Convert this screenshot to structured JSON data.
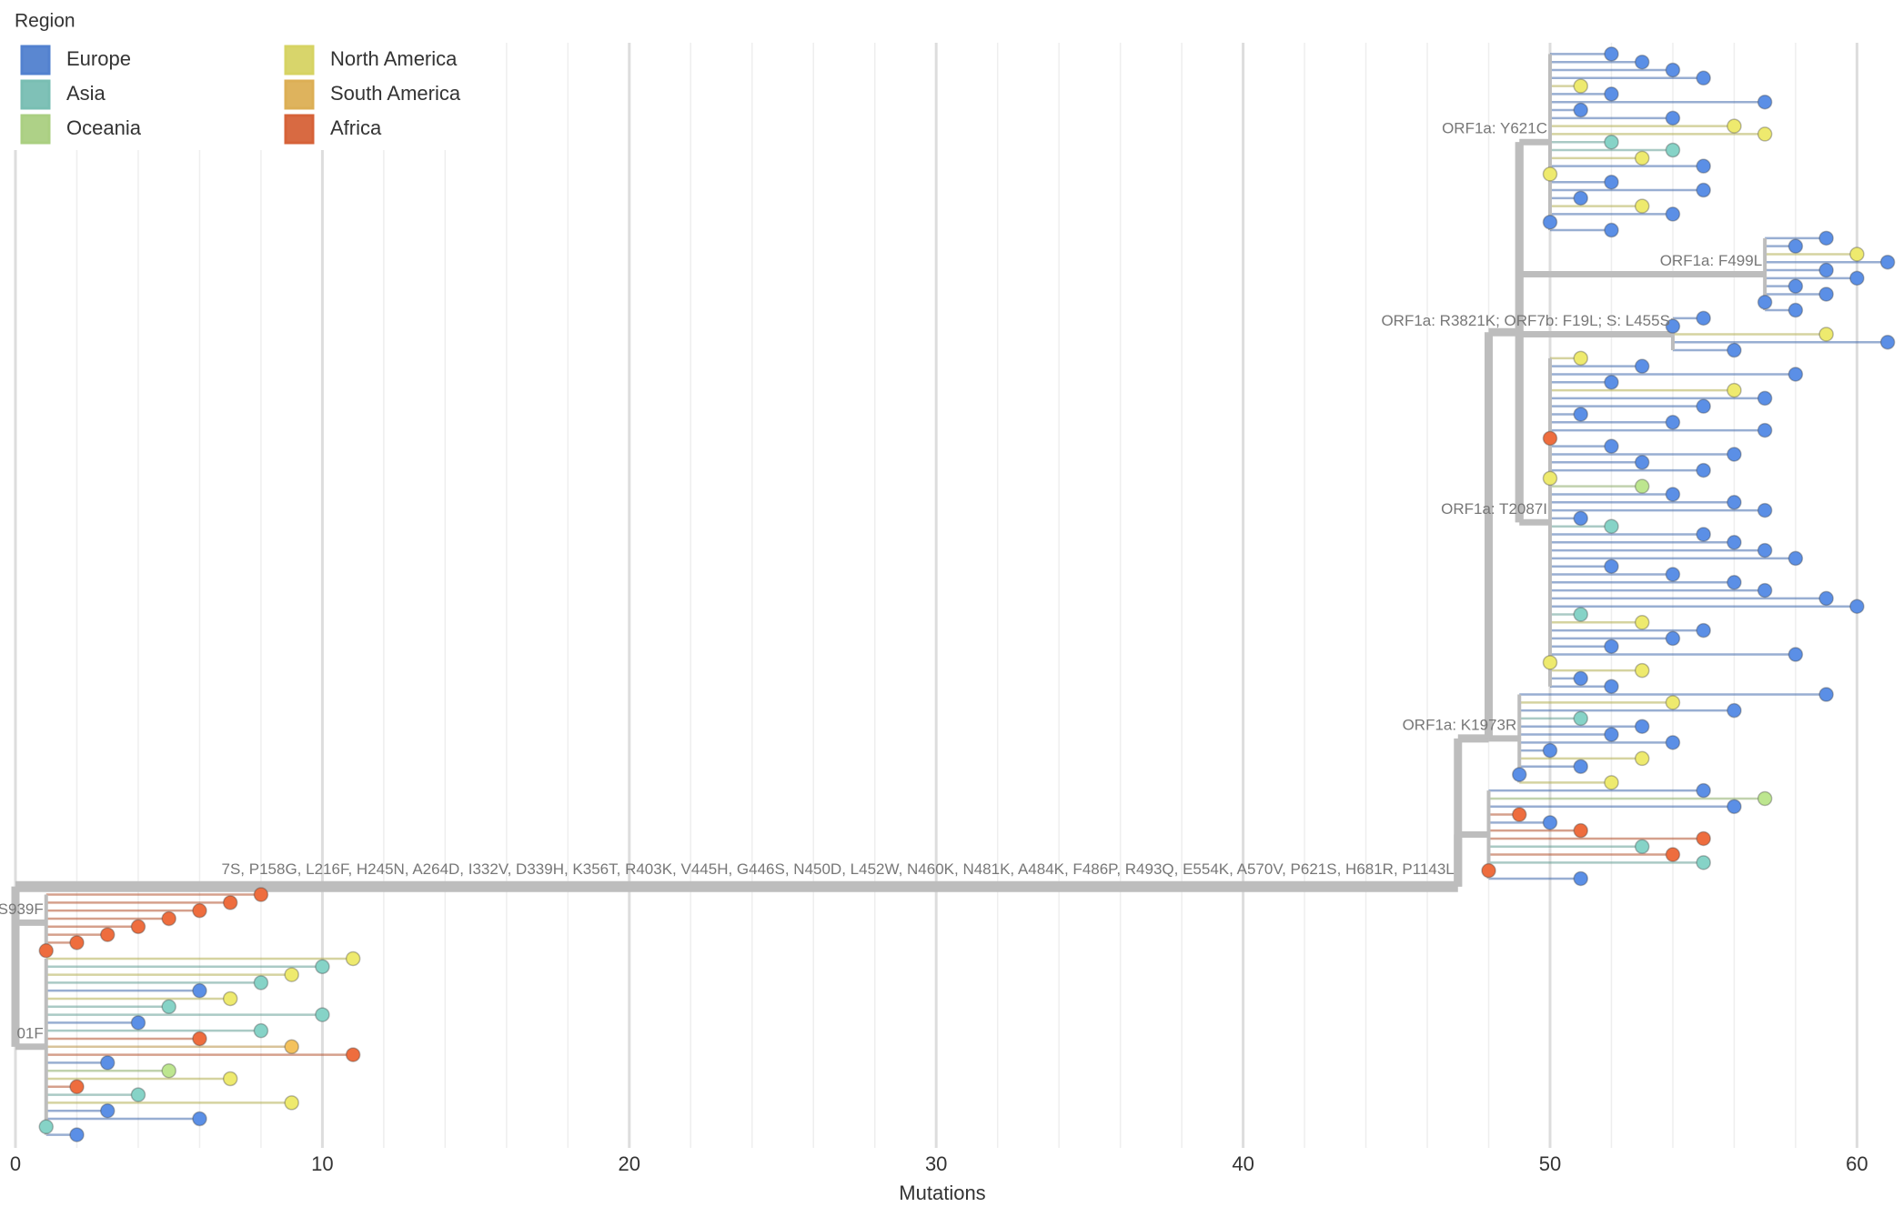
{
  "chart_data": {
    "type": "tree",
    "legend_title": "Region",
    "regions": [
      {
        "name": "Europe",
        "color": "#5b8fe6"
      },
      {
        "name": "Asia",
        "color": "#86d3c7"
      },
      {
        "name": "Oceania",
        "color": "#bde68f"
      },
      {
        "name": "North America",
        "color": "#eeea6e"
      },
      {
        "name": "South America",
        "color": "#f4c25e"
      },
      {
        "name": "Africa",
        "color": "#ee6d3e"
      }
    ],
    "x_label": "Mutations",
    "xlim": [
      0,
      61.5
    ],
    "xticks": [
      0,
      10,
      20,
      30,
      40,
      50,
      60
    ],
    "xgrid": [
      2,
      4,
      6,
      8,
      12,
      14,
      16,
      18,
      22,
      24,
      26,
      28,
      32,
      34,
      36,
      38,
      42,
      44,
      46,
      48,
      52,
      54,
      56,
      58
    ],
    "trunk": {
      "from": 0,
      "to": 47,
      "label": "7S, P158G, L216F, H245N, A264D, I332V, D339H, K356T, R403K, V445H, G446S, N450D, L452W, N460K, N481K, A484K, F486P, R493Q, E554K, A570V, P621S, H681R, P1143L"
    },
    "clades": [
      {
        "label": "ORF1a: Y621C",
        "parent": 49,
        "node": 50,
        "tips": [
          [
            52,
            0
          ],
          [
            53,
            0
          ],
          [
            54,
            0
          ],
          [
            55,
            0
          ],
          [
            51,
            3
          ],
          [
            52,
            0
          ],
          [
            57,
            0
          ],
          [
            51,
            0
          ],
          [
            54,
            0
          ],
          [
            56,
            3
          ],
          [
            57,
            3
          ],
          [
            52,
            1
          ],
          [
            54,
            1
          ],
          [
            53,
            3
          ],
          [
            55,
            0
          ],
          [
            50,
            3
          ],
          [
            52,
            0
          ],
          [
            55,
            0
          ],
          [
            51,
            0
          ],
          [
            53,
            3
          ],
          [
            54,
            0
          ],
          [
            50,
            0
          ],
          [
            52,
            0
          ]
        ]
      },
      {
        "label": "ORF1a: F499L",
        "parent": 49,
        "node": 57,
        "tips": [
          [
            59,
            0
          ],
          [
            58,
            0
          ],
          [
            60,
            3
          ],
          [
            61,
            0
          ],
          [
            59,
            0
          ],
          [
            60,
            0
          ],
          [
            58,
            0
          ],
          [
            59,
            0
          ],
          [
            57,
            0
          ],
          [
            58,
            0
          ]
        ]
      },
      {
        "label": "ORF1a: R3821K; ORF7b: F19L; S: L455S",
        "parent": 49,
        "node": 54,
        "tips": [
          [
            55,
            0
          ],
          [
            54,
            0
          ],
          [
            59,
            3
          ],
          [
            61,
            0
          ],
          [
            56,
            0
          ]
        ]
      },
      {
        "label": "ORF1a: T2087I",
        "parent": 49,
        "node": 50,
        "tips": [
          [
            51,
            3
          ],
          [
            53,
            0
          ],
          [
            58,
            0
          ],
          [
            52,
            0
          ],
          [
            56,
            3
          ],
          [
            57,
            0
          ],
          [
            55,
            0
          ],
          [
            51,
            0
          ],
          [
            54,
            0
          ],
          [
            57,
            0
          ],
          [
            50,
            5
          ],
          [
            52,
            0
          ],
          [
            56,
            0
          ],
          [
            53,
            0
          ],
          [
            55,
            0
          ],
          [
            50,
            3
          ],
          [
            53,
            2
          ],
          [
            54,
            0
          ],
          [
            56,
            0
          ],
          [
            57,
            0
          ],
          [
            51,
            0
          ],
          [
            52,
            1
          ],
          [
            55,
            0
          ],
          [
            56,
            0
          ],
          [
            57,
            0
          ],
          [
            58,
            0
          ],
          [
            52,
            0
          ],
          [
            54,
            0
          ],
          [
            56,
            0
          ],
          [
            57,
            0
          ],
          [
            59,
            0
          ],
          [
            60,
            0
          ],
          [
            51,
            1
          ],
          [
            53,
            3
          ],
          [
            55,
            0
          ],
          [
            54,
            0
          ],
          [
            52,
            0
          ],
          [
            58,
            0
          ],
          [
            50,
            3
          ],
          [
            53,
            3
          ],
          [
            51,
            0
          ],
          [
            52,
            0
          ]
        ]
      },
      {
        "label": "ORF1a: K1973R",
        "parent": 48,
        "node": 49,
        "tips": [
          [
            59,
            0
          ],
          [
            54,
            3
          ],
          [
            56,
            0
          ],
          [
            51,
            1
          ],
          [
            53,
            0
          ],
          [
            52,
            0
          ],
          [
            54,
            0
          ],
          [
            50,
            0
          ],
          [
            53,
            3
          ],
          [
            51,
            0
          ],
          [
            49,
            0
          ],
          [
            52,
            3
          ]
        ]
      },
      {
        "parent": 47,
        "node": 48,
        "tips": [
          [
            55,
            0
          ],
          [
            57,
            2
          ],
          [
            56,
            0
          ],
          [
            49,
            5
          ],
          [
            50,
            0
          ],
          [
            51,
            5
          ],
          [
            55,
            5
          ],
          [
            53,
            1
          ],
          [
            54,
            5
          ],
          [
            55,
            1
          ],
          [
            48,
            5
          ],
          [
            51,
            0
          ]
        ]
      },
      {
        "label": ": S939F",
        "parent": 0,
        "node": 1,
        "tips": [
          [
            8,
            5
          ],
          [
            7,
            5
          ],
          [
            6,
            5
          ],
          [
            5,
            5
          ],
          [
            4,
            5
          ],
          [
            3,
            5
          ],
          [
            2,
            5
          ],
          [
            1,
            5
          ]
        ]
      },
      {
        "label": "01F",
        "parent": 0,
        "node": 1,
        "tips": [
          [
            11,
            3
          ],
          [
            10,
            1
          ],
          [
            9,
            3
          ],
          [
            8,
            1
          ],
          [
            6,
            0
          ],
          [
            7,
            3
          ],
          [
            5,
            1
          ],
          [
            10,
            1
          ],
          [
            4,
            0
          ],
          [
            8,
            1
          ],
          [
            6,
            5
          ],
          [
            9,
            4
          ],
          [
            11,
            5
          ],
          [
            3,
            0
          ],
          [
            5,
            2
          ],
          [
            7,
            3
          ],
          [
            2,
            5
          ],
          [
            4,
            1
          ],
          [
            9,
            3
          ],
          [
            3,
            0
          ],
          [
            6,
            0
          ],
          [
            1,
            1
          ],
          [
            2,
            0
          ]
        ]
      }
    ]
  }
}
